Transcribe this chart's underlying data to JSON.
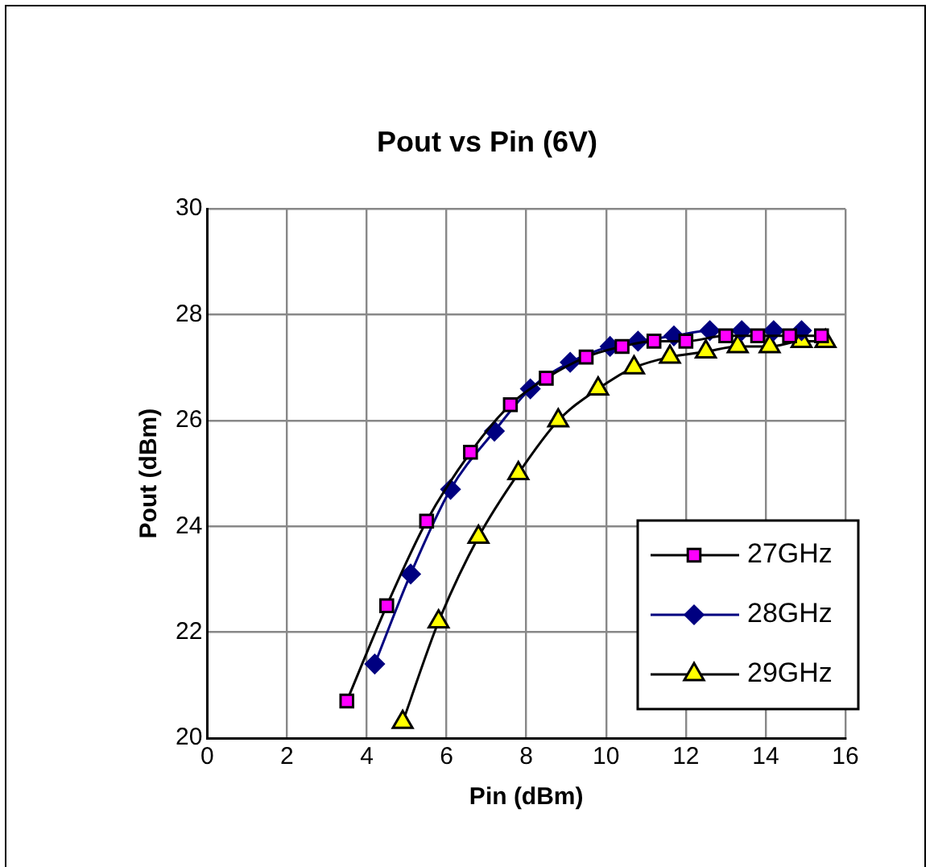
{
  "chart_data": {
    "type": "line",
    "title": "Pout vs Pin (6V)",
    "xlabel": "Pin (dBm)",
    "ylabel": "Pout (dBm)",
    "xlim": [
      0,
      16
    ],
    "xticks": [
      0,
      2,
      4,
      6,
      8,
      10,
      12,
      14,
      16
    ],
    "ylim": [
      20,
      30
    ],
    "yticks": [
      20,
      22,
      24,
      26,
      28,
      30
    ],
    "grid": true,
    "legend": "bottom right",
    "line_style": "solid",
    "series": [
      {
        "name": "27GHz",
        "color": "#ff00ff",
        "marker": "square",
        "x": [
          3.5,
          4.5,
          5.5,
          6.6,
          7.6,
          8.5,
          9.5,
          10.4,
          11.2,
          12,
          13,
          13.8,
          14.6,
          15.4
        ],
        "values": [
          20.7,
          22.5,
          24.1,
          25.4,
          26.3,
          26.8,
          27.2,
          27.4,
          27.5,
          27.5,
          27.6,
          27.6,
          27.6,
          27.6
        ]
      },
      {
        "name": "28GHz",
        "color": "#000080",
        "marker": "diamond",
        "x": [
          4.2,
          5.1,
          6.1,
          7.2,
          8.1,
          9.1,
          10.1,
          10.8,
          11.7,
          12.6,
          13.4,
          14.2,
          14.9
        ],
        "values": [
          21.4,
          23.1,
          24.7,
          25.8,
          26.6,
          27.1,
          27.4,
          27.5,
          27.6,
          27.7,
          27.7,
          27.7,
          27.7
        ]
      },
      {
        "name": "29GHz",
        "color": "#ffff00",
        "marker": "triangle",
        "x": [
          4.9,
          5.8,
          6.8,
          7.8,
          8.8,
          9.8,
          10.7,
          11.6,
          12.5,
          13.3,
          14.1,
          14.9,
          15.5
        ],
        "values": [
          20.3,
          22.2,
          23.8,
          25,
          26,
          26.6,
          27,
          27.2,
          27.3,
          27.4,
          27.4,
          27.5,
          27.5
        ]
      }
    ]
  }
}
